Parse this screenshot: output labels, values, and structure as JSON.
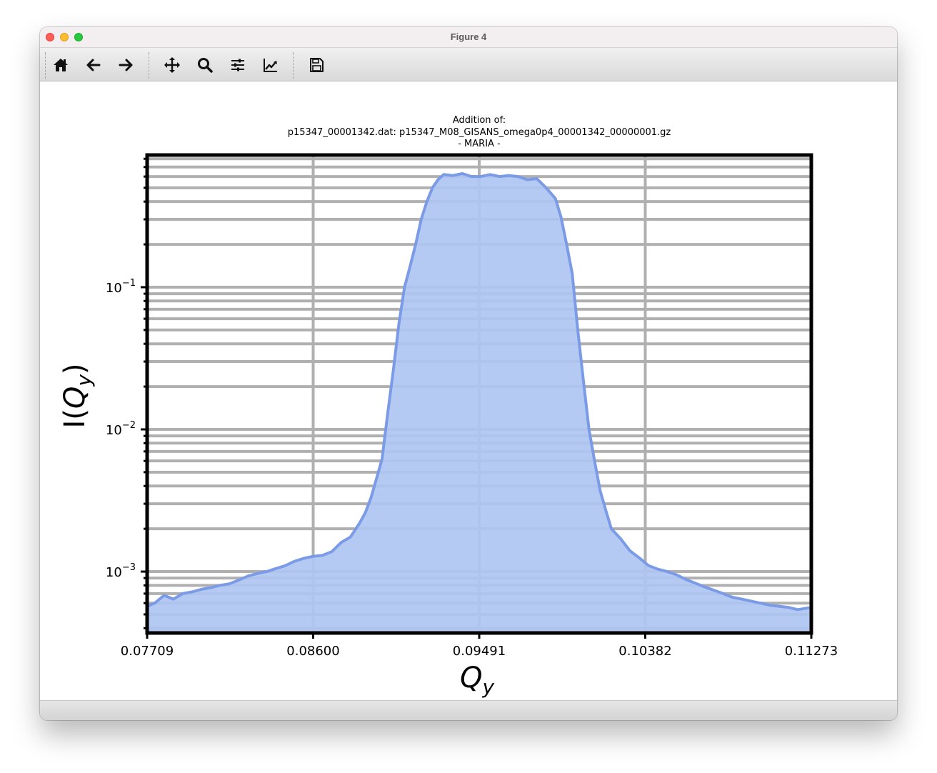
{
  "window": {
    "title": "Figure 4"
  },
  "toolbar": {
    "buttons": [
      {
        "name": "home-button",
        "icon": "home-icon"
      },
      {
        "name": "back-button",
        "icon": "arrow-left-icon"
      },
      {
        "name": "forward-button",
        "icon": "arrow-right-icon"
      },
      {
        "name": "pan-button",
        "icon": "move-icon"
      },
      {
        "name": "zoom-button",
        "icon": "magnifier-icon"
      },
      {
        "name": "configure-subplots-button",
        "icon": "sliders-icon"
      },
      {
        "name": "edit-axis-button",
        "icon": "line-chart-icon"
      },
      {
        "name": "save-button",
        "icon": "floppy-disk-icon"
      }
    ]
  },
  "chart_data": {
    "type": "area",
    "title_lines": [
      "Addition of:",
      "p15347_00001342.dat: p15347_M08_GISANS_omega0p4_00001342_00000001.gz",
      "- MARIA -"
    ],
    "xlabel_main": "Q",
    "xlabel_sub": "y",
    "ylabel_prefix": "I(",
    "ylabel_main": "Q",
    "ylabel_sub": "y",
    "ylabel_suffix": ")",
    "xscale": "linear",
    "yscale": "log",
    "xlim": [
      0.07709,
      0.11273
    ],
    "ylim": [
      0.00037,
      0.85
    ],
    "xticks": [
      0.07709,
      0.086,
      0.09491,
      0.10382,
      0.11273
    ],
    "xtick_labels": [
      "0.07709",
      "0.08600",
      "0.09491",
      "0.10382",
      "0.11273"
    ],
    "ytick_labels": [
      {
        "value": 0.1,
        "base": "10",
        "exp": "−1"
      },
      {
        "value": 0.01,
        "base": "10",
        "exp": "−2"
      },
      {
        "value": 0.001,
        "base": "10",
        "exp": "−3"
      }
    ],
    "grid": true,
    "fill_color": "#aec6f2",
    "line_color": "#7b9be6",
    "grid_color": "#b0b0b0",
    "series": [
      {
        "x": [
          0.07709,
          0.0775,
          0.078,
          0.0785,
          0.079,
          0.0795,
          0.08,
          0.0805,
          0.081,
          0.0815,
          0.082,
          0.0825,
          0.083,
          0.0835,
          0.084,
          0.0845,
          0.085,
          0.0855,
          0.086,
          0.0865,
          0.087,
          0.0875,
          0.088,
          0.0885,
          0.0888,
          0.0891,
          0.0894,
          0.0897,
          0.09,
          0.0903,
          0.0906,
          0.0909,
          0.0912,
          0.0915,
          0.0918,
          0.0921,
          0.0924,
          0.0927,
          0.093,
          0.0935,
          0.094,
          0.0945,
          0.095,
          0.0955,
          0.096,
          0.0965,
          0.097,
          0.0975,
          0.098,
          0.0985,
          0.099,
          0.0993,
          0.0996,
          0.0999,
          0.1002,
          0.1005,
          0.1008,
          0.1011,
          0.1014,
          0.1017,
          0.102,
          0.1025,
          0.103,
          0.1035,
          0.104,
          0.1045,
          0.105,
          0.1055,
          0.106,
          0.1065,
          0.107,
          0.1075,
          0.108,
          0.1085,
          0.109,
          0.1095,
          0.11,
          0.1105,
          0.111,
          0.1115,
          0.112,
          0.11273
        ],
        "y": [
          0.00057,
          0.0006,
          0.00068,
          0.00064,
          0.0007,
          0.00072,
          0.00075,
          0.00077,
          0.0008,
          0.00082,
          0.00087,
          0.00093,
          0.00097,
          0.001,
          0.00105,
          0.0011,
          0.00118,
          0.00124,
          0.00128,
          0.0013,
          0.00138,
          0.0016,
          0.00175,
          0.0022,
          0.0026,
          0.0033,
          0.0045,
          0.0062,
          0.013,
          0.026,
          0.055,
          0.1,
          0.14,
          0.2,
          0.3,
          0.4,
          0.5,
          0.57,
          0.62,
          0.61,
          0.63,
          0.6,
          0.6,
          0.62,
          0.6,
          0.61,
          0.6,
          0.57,
          0.58,
          0.5,
          0.42,
          0.31,
          0.2,
          0.125,
          0.05,
          0.022,
          0.01,
          0.006,
          0.0037,
          0.0027,
          0.002,
          0.0017,
          0.0014,
          0.00125,
          0.0011,
          0.00104,
          0.001,
          0.00095,
          0.00088,
          0.00083,
          0.00078,
          0.00074,
          0.0007,
          0.00066,
          0.00064,
          0.00062,
          0.0006,
          0.00058,
          0.00057,
          0.00056,
          0.00054,
          0.00056
        ]
      }
    ]
  }
}
